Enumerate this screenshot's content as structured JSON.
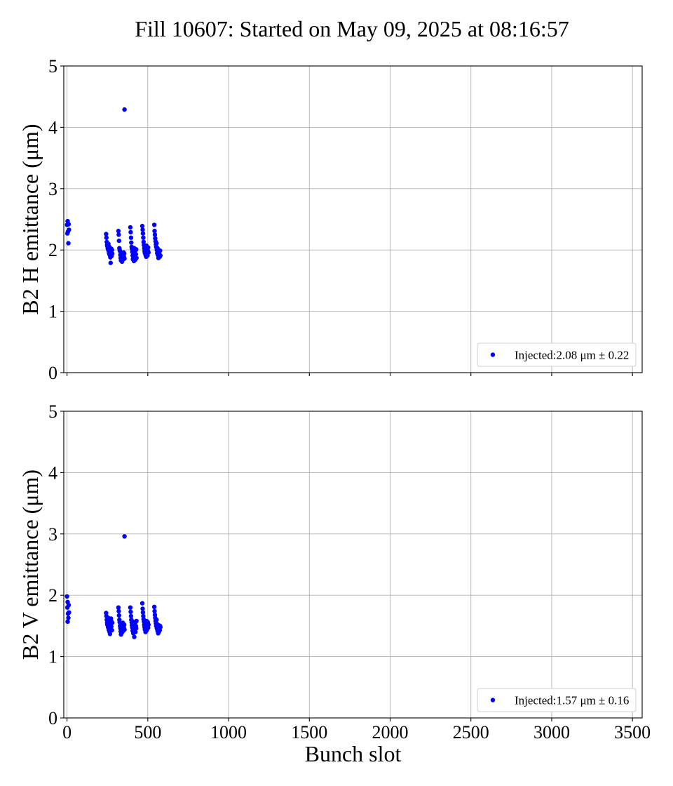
{
  "title": "Fill 10607: Started on May 09, 2025 at 08:16:57",
  "colors": {
    "marker": "#0000ff",
    "grid": "#b0b0b0",
    "axes": "#000000"
  },
  "chart_data": [
    {
      "type": "scatter",
      "ylabel": "B2 H emittance (μm)",
      "xlabel": "",
      "xlim": [
        -20,
        3560
      ],
      "ylim": [
        0,
        5
      ],
      "xticks": [
        "0",
        "500",
        "1000",
        "1500",
        "2000",
        "2500",
        "3000",
        "3500"
      ],
      "yticks": [
        "0",
        "1",
        "2",
        "3",
        "4",
        "5"
      ],
      "grid": true,
      "legend_position": "lower-right",
      "series": [
        {
          "name": "Injected:2.08 μm ± 0.22",
          "color": "#0000ff",
          "points": [
            [
              0,
              2.41
            ],
            [
              2,
              2.27
            ],
            [
              4,
              2.47
            ],
            [
              6,
              2.3
            ],
            [
              8,
              2.11
            ],
            [
              10,
              2.42
            ],
            [
              12,
              2.33
            ],
            [
              242,
              2.26
            ],
            [
              244,
              2.2
            ],
            [
              246,
              2.13
            ],
            [
              248,
              2.08
            ],
            [
              250,
              2.06
            ],
            [
              252,
              2.03
            ],
            [
              254,
              2.01
            ],
            [
              256,
              2.1
            ],
            [
              258,
              1.98
            ],
            [
              260,
              1.95
            ],
            [
              262,
              2.05
            ],
            [
              264,
              1.92
            ],
            [
              266,
              1.99
            ],
            [
              268,
              1.88
            ],
            [
              270,
              1.79
            ],
            [
              272,
              1.96
            ],
            [
              274,
              2.02
            ],
            [
              276,
              1.9
            ],
            [
              278,
              2.0
            ],
            [
              280,
              1.94
            ],
            [
              318,
              2.31
            ],
            [
              320,
              2.25
            ],
            [
              322,
              2.15
            ],
            [
              324,
              2.03
            ],
            [
              326,
              2.0
            ],
            [
              328,
              1.98
            ],
            [
              330,
              1.92
            ],
            [
              332,
              1.87
            ],
            [
              334,
              1.83
            ],
            [
              336,
              1.95
            ],
            [
              338,
              1.9
            ],
            [
              340,
              1.81
            ],
            [
              342,
              1.93
            ],
            [
              344,
              1.88
            ],
            [
              346,
              1.91
            ],
            [
              348,
              1.85
            ],
            [
              350,
              1.96
            ],
            [
              352,
              1.89
            ],
            [
              354,
              1.94
            ],
            [
              356,
              1.86
            ],
            [
              356,
              4.29
            ],
            [
              392,
              2.37
            ],
            [
              394,
              2.29
            ],
            [
              396,
              2.2
            ],
            [
              398,
              2.12
            ],
            [
              400,
              2.05
            ],
            [
              402,
              2.02
            ],
            [
              404,
              1.97
            ],
            [
              406,
              1.91
            ],
            [
              408,
              1.85
            ],
            [
              410,
              2.0
            ],
            [
              412,
              1.94
            ],
            [
              414,
              1.82
            ],
            [
              416,
              2.03
            ],
            [
              418,
              1.88
            ],
            [
              420,
              1.96
            ],
            [
              422,
              1.84
            ],
            [
              424,
              1.99
            ],
            [
              426,
              1.93
            ],
            [
              428,
              2.01
            ],
            [
              430,
              1.87
            ],
            [
              466,
              2.39
            ],
            [
              468,
              2.33
            ],
            [
              470,
              2.27
            ],
            [
              472,
              2.2
            ],
            [
              474,
              2.13
            ],
            [
              476,
              2.08
            ],
            [
              478,
              2.03
            ],
            [
              480,
              1.98
            ],
            [
              482,
              1.95
            ],
            [
              484,
              2.05
            ],
            [
              486,
              1.92
            ],
            [
              488,
              2.0
            ],
            [
              490,
              1.89
            ],
            [
              492,
              2.07
            ],
            [
              494,
              1.94
            ],
            [
              496,
              2.02
            ],
            [
              498,
              1.91
            ],
            [
              500,
              1.99
            ],
            [
              502,
              2.04
            ],
            [
              504,
              1.96
            ],
            [
              540,
              2.41
            ],
            [
              542,
              2.31
            ],
            [
              544,
              2.25
            ],
            [
              546,
              2.19
            ],
            [
              548,
              2.14
            ],
            [
              550,
              2.09
            ],
            [
              552,
              2.05
            ],
            [
              554,
              2.11
            ],
            [
              556,
              2.0
            ],
            [
              558,
              1.95
            ],
            [
              560,
              2.03
            ],
            [
              562,
              1.92
            ],
            [
              564,
              1.98
            ],
            [
              566,
              1.87
            ],
            [
              568,
              1.9
            ],
            [
              570,
              1.96
            ],
            [
              572,
              1.93
            ],
            [
              574,
              1.89
            ],
            [
              576,
              1.99
            ],
            [
              578,
              1.91
            ]
          ]
        }
      ]
    },
    {
      "type": "scatter",
      "ylabel": "B2 V emittance (μm)",
      "xlabel": "Bunch slot",
      "xlim": [
        -20,
        3560
      ],
      "ylim": [
        0,
        5
      ],
      "xticks": [
        "0",
        "500",
        "1000",
        "1500",
        "2000",
        "2500",
        "3000",
        "3500"
      ],
      "yticks": [
        "0",
        "1",
        "2",
        "3",
        "4",
        "5"
      ],
      "grid": true,
      "legend_position": "lower-right",
      "series": [
        {
          "name": "Injected:1.57 μm ± 0.16",
          "color": "#0000ff",
          "points": [
            [
              0,
              1.98
            ],
            [
              2,
              1.8
            ],
            [
              4,
              1.89
            ],
            [
              6,
              1.7
            ],
            [
              8,
              1.63
            ],
            [
              10,
              1.84
            ],
            [
              12,
              1.72
            ],
            [
              4,
              1.57
            ],
            [
              242,
              1.71
            ],
            [
              244,
              1.66
            ],
            [
              246,
              1.6
            ],
            [
              248,
              1.55
            ],
            [
              250,
              1.52
            ],
            [
              252,
              1.58
            ],
            [
              254,
              1.48
            ],
            [
              256,
              1.63
            ],
            [
              258,
              1.44
            ],
            [
              260,
              1.56
            ],
            [
              262,
              1.41
            ],
            [
              264,
              1.5
            ],
            [
              266,
              1.37
            ],
            [
              268,
              1.53
            ],
            [
              270,
              1.45
            ],
            [
              272,
              1.62
            ],
            [
              274,
              1.49
            ],
            [
              276,
              1.57
            ],
            [
              278,
              1.43
            ],
            [
              280,
              1.55
            ],
            [
              318,
              1.8
            ],
            [
              320,
              1.74
            ],
            [
              322,
              1.67
            ],
            [
              324,
              1.6
            ],
            [
              326,
              1.56
            ],
            [
              328,
              1.5
            ],
            [
              330,
              1.46
            ],
            [
              332,
              1.41
            ],
            [
              334,
              1.36
            ],
            [
              336,
              1.53
            ],
            [
              338,
              1.44
            ],
            [
              340,
              1.39
            ],
            [
              342,
              1.51
            ],
            [
              344,
              1.46
            ],
            [
              346,
              1.55
            ],
            [
              348,
              1.42
            ],
            [
              350,
              1.49
            ],
            [
              352,
              1.47
            ],
            [
              354,
              1.52
            ],
            [
              356,
              1.44
            ],
            [
              356,
              2.96
            ],
            [
              392,
              1.8
            ],
            [
              394,
              1.73
            ],
            [
              396,
              1.66
            ],
            [
              398,
              1.6
            ],
            [
              400,
              1.56
            ],
            [
              402,
              1.51
            ],
            [
              404,
              1.47
            ],
            [
              406,
              1.42
            ],
            [
              408,
              1.57
            ],
            [
              410,
              1.38
            ],
            [
              412,
              1.53
            ],
            [
              414,
              1.45
            ],
            [
              416,
              1.32
            ],
            [
              418,
              1.49
            ],
            [
              420,
              1.43
            ],
            [
              422,
              1.55
            ],
            [
              424,
              1.4
            ],
            [
              426,
              1.5
            ],
            [
              428,
              1.46
            ],
            [
              430,
              1.58
            ],
            [
              466,
              1.87
            ],
            [
              468,
              1.78
            ],
            [
              470,
              1.72
            ],
            [
              472,
              1.66
            ],
            [
              474,
              1.61
            ],
            [
              476,
              1.57
            ],
            [
              478,
              1.52
            ],
            [
              480,
              1.48
            ],
            [
              482,
              1.44
            ],
            [
              484,
              1.55
            ],
            [
              486,
              1.4
            ],
            [
              488,
              1.51
            ],
            [
              490,
              1.46
            ],
            [
              492,
              1.58
            ],
            [
              494,
              1.43
            ],
            [
              496,
              1.53
            ],
            [
              498,
              1.49
            ],
            [
              500,
              1.56
            ],
            [
              502,
              1.47
            ],
            [
              504,
              1.52
            ],
            [
              540,
              1.81
            ],
            [
              542,
              1.74
            ],
            [
              544,
              1.68
            ],
            [
              546,
              1.63
            ],
            [
              548,
              1.58
            ],
            [
              550,
              1.54
            ],
            [
              552,
              1.5
            ],
            [
              554,
              1.6
            ],
            [
              556,
              1.46
            ],
            [
              558,
              1.53
            ],
            [
              560,
              1.42
            ],
            [
              562,
              1.49
            ],
            [
              564,
              1.38
            ],
            [
              566,
              1.45
            ],
            [
              568,
              1.51
            ],
            [
              570,
              1.41
            ],
            [
              572,
              1.47
            ],
            [
              574,
              1.43
            ],
            [
              576,
              1.5
            ],
            [
              578,
              1.48
            ]
          ]
        }
      ]
    }
  ]
}
